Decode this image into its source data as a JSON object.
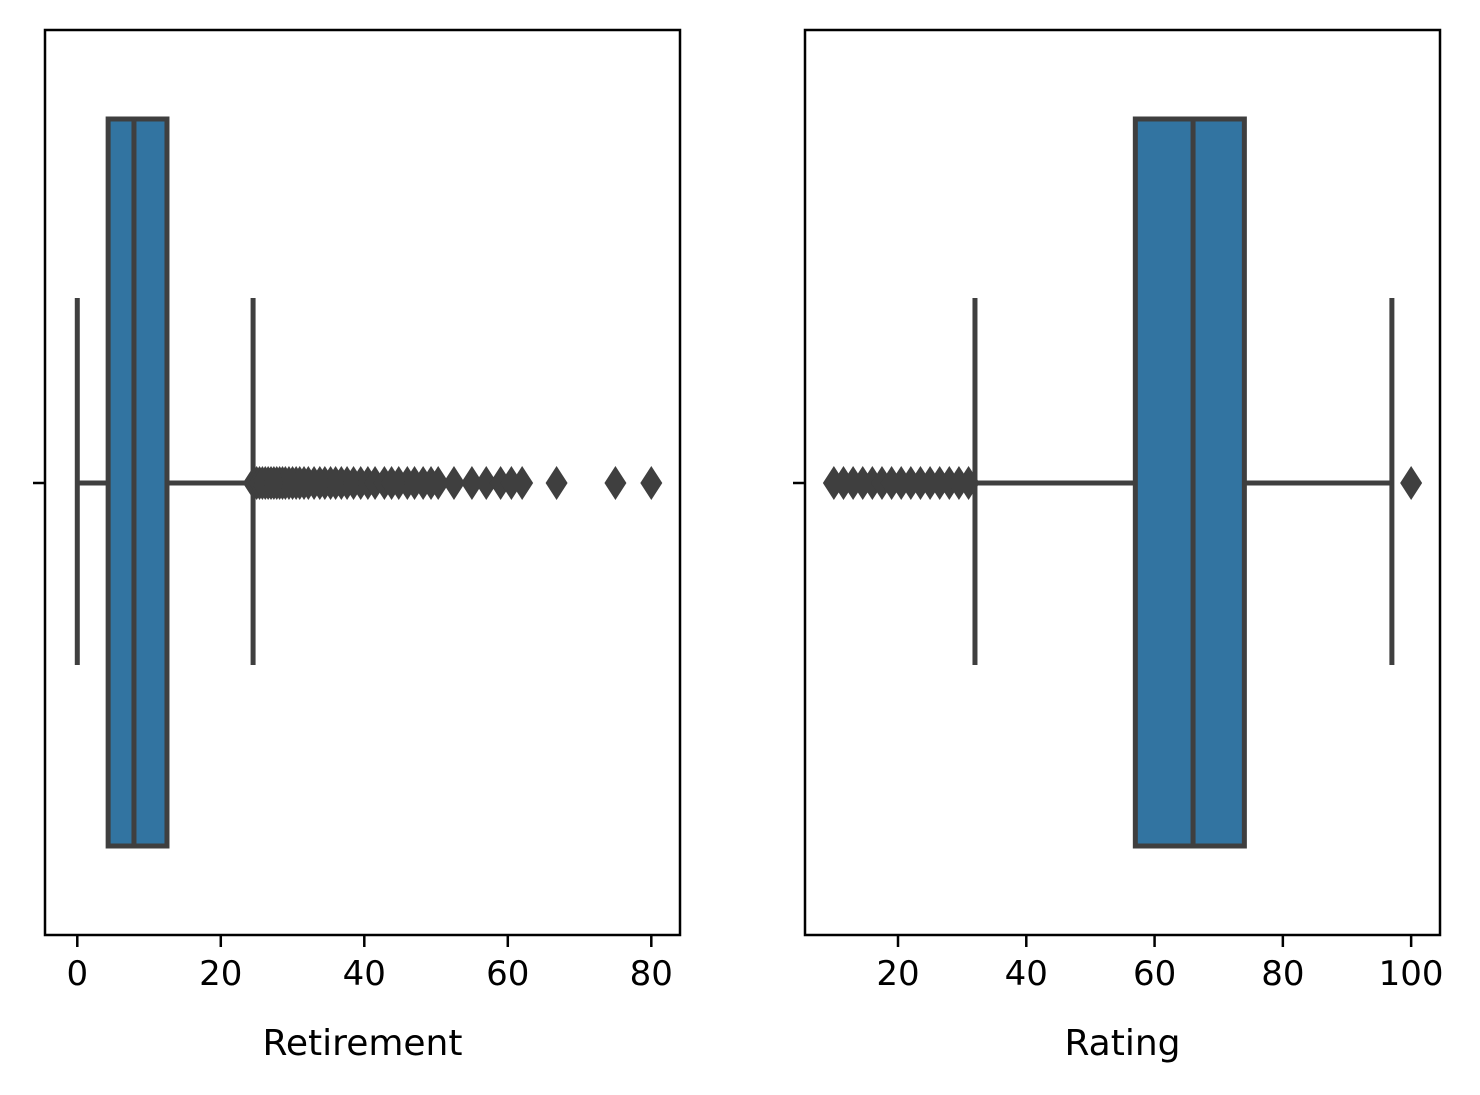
{
  "chart_data": [
    {
      "type": "box",
      "orientation": "horizontal",
      "xlabel": "Retirement",
      "ylabel": "",
      "title": "",
      "xlim": [
        -4.5,
        84
      ],
      "xticks": [
        0,
        20,
        40,
        60,
        80
      ],
      "xtick_labels": [
        "0",
        "20",
        "40",
        "60",
        "80"
      ],
      "box": {
        "whisker_low": 0,
        "q1": 4.3,
        "median": 7.9,
        "q3": 12.5,
        "whisker_high": 24.5
      },
      "outliers": [
        24.6,
        25.0,
        25.4,
        25.8,
        26.2,
        26.6,
        27.0,
        27.4,
        27.8,
        28.2,
        28.6,
        29.0,
        29.5,
        30.0,
        30.5,
        31.0,
        31.6,
        32.2,
        33.0,
        33.8,
        34.5,
        35.3,
        36.0,
        36.8,
        37.6,
        38.5,
        39.5,
        40.5,
        41.5,
        42.8,
        43.8,
        44.8,
        46.0,
        47.0,
        48.2,
        49.3,
        50.3,
        52.5,
        55.0,
        57.0,
        59.0,
        60.5,
        62.0,
        66.8,
        75.0,
        80.0
      ],
      "grid": false,
      "colors": {
        "box_fill": "#3274a1",
        "lines": "#3f3f3f"
      }
    },
    {
      "type": "box",
      "orientation": "horizontal",
      "xlabel": "Rating",
      "ylabel": "",
      "title": "",
      "xlim": [
        5.5,
        104.5
      ],
      "xticks": [
        20,
        40,
        60,
        80,
        100
      ],
      "xtick_labels": [
        "20",
        "40",
        "60",
        "80",
        "100"
      ],
      "box": {
        "whisker_low": 32,
        "q1": 57,
        "median": 66,
        "q3": 74,
        "whisker_high": 97
      },
      "outliers": [
        10,
        11.5,
        13,
        14.5,
        16,
        17.5,
        19,
        20.5,
        22,
        23.5,
        25,
        26.5,
        28,
        29.5,
        31,
        100
      ],
      "grid": false,
      "colors": {
        "box_fill": "#3274a1",
        "lines": "#3f3f3f"
      }
    }
  ]
}
